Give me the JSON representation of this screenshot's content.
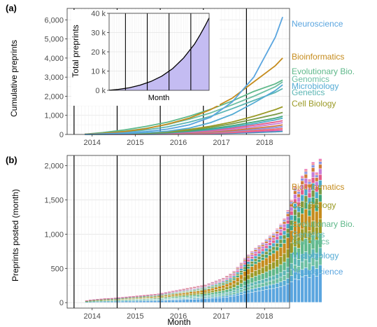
{
  "chart_data": [
    {
      "panel_label": "(a)",
      "type": "line",
      "ylabel": "Cumulative preprints",
      "ylim": [
        0,
        6600
      ],
      "yticks": [
        0,
        1000,
        2000,
        3000,
        4000,
        5000,
        6000
      ],
      "ytick_labels": [
        "0",
        "1,000",
        "2,000",
        "3,000",
        "4,000",
        "5,000",
        "6,000"
      ],
      "xlim": [
        2013.42,
        2018.58
      ],
      "xticks": [
        2014,
        2015,
        2016,
        2017,
        2018
      ],
      "xtick_labels": [
        "2014",
        "2015",
        "2016",
        "2017",
        "2018"
      ],
      "grid": true,
      "vlines": [
        2013.58,
        2014.58,
        2015.58,
        2016.58,
        2017.58
      ],
      "x": [
        2013.83,
        2014.25,
        2014.75,
        2015.25,
        2015.75,
        2016.25,
        2016.75,
        2017.25,
        2017.75,
        2018.25,
        2018.42
      ],
      "series": [
        {
          "name": "Neuroscience",
          "color": "#5aa5df",
          "labeled": true,
          "values": [
            5,
            30,
            80,
            150,
            280,
            500,
            900,
            1700,
            3000,
            5100,
            6150
          ]
        },
        {
          "name": "Bioinformatics",
          "color": "#c58b1c",
          "labeled": true,
          "values": [
            10,
            60,
            150,
            300,
            540,
            850,
            1300,
            1900,
            2750,
            3600,
            4000
          ]
        },
        {
          "name": "Evolutionary Bio.",
          "color": "#5fb88a",
          "labeled": true,
          "values": [
            15,
            100,
            240,
            420,
            640,
            950,
            1320,
            1750,
            2250,
            2650,
            2850
          ]
        },
        {
          "name": "Genomics",
          "color": "#6cbfa3",
          "labeled": true,
          "values": [
            10,
            70,
            170,
            320,
            520,
            800,
            1130,
            1550,
            2000,
            2500,
            2750
          ]
        },
        {
          "name": "Microbiology",
          "color": "#54abd4",
          "labeled": true,
          "values": [
            2,
            15,
            40,
            90,
            170,
            330,
            620,
            1050,
            1650,
            2300,
            2600
          ]
        },
        {
          "name": "Genetics",
          "color": "#5cb6b4",
          "labeled": true,
          "values": [
            8,
            50,
            120,
            240,
            400,
            640,
            950,
            1350,
            1780,
            2200,
            2400
          ]
        },
        {
          "name": "Cell Biology",
          "color": "#9b9a26",
          "labeled": true,
          "values": [
            3,
            15,
            40,
            80,
            150,
            260,
            430,
            650,
            950,
            1300,
            1450
          ]
        },
        {
          "name": "",
          "color": "#7a9a45",
          "labeled": false,
          "values": [
            2,
            12,
            30,
            65,
            120,
            220,
            370,
            560,
            800,
            1050,
            1150
          ]
        },
        {
          "name": "",
          "color": "#3fa67a",
          "labeled": false,
          "values": [
            2,
            10,
            26,
            55,
            100,
            180,
            300,
            460,
            650,
            850,
            950
          ]
        },
        {
          "name": "",
          "color": "#4aa9c8",
          "labeled": false,
          "values": [
            1,
            8,
            20,
            45,
            80,
            150,
            250,
            390,
            560,
            760,
            850
          ]
        },
        {
          "name": "",
          "color": "#e35c8a",
          "labeled": false,
          "values": [
            1,
            6,
            16,
            35,
            65,
            120,
            210,
            330,
            480,
            650,
            720
          ]
        },
        {
          "name": "",
          "color": "#c77dd6",
          "labeled": false,
          "values": [
            1,
            5,
            12,
            28,
            50,
            95,
            170,
            270,
            400,
            550,
            620
          ]
        },
        {
          "name": "",
          "color": "#d07a3a",
          "labeled": false,
          "values": [
            1,
            4,
            10,
            22,
            40,
            75,
            130,
            210,
            320,
            440,
            500
          ]
        },
        {
          "name": "",
          "color": "#8b93e0",
          "labeled": false,
          "values": [
            0,
            3,
            8,
            18,
            32,
            60,
            105,
            170,
            260,
            360,
            410
          ]
        },
        {
          "name": "",
          "color": "#ef6f6f",
          "labeled": false,
          "values": [
            0,
            2,
            6,
            14,
            25,
            45,
            80,
            130,
            200,
            280,
            320
          ]
        },
        {
          "name": "",
          "color": "#e85aa6",
          "labeled": false,
          "values": [
            0,
            2,
            5,
            10,
            18,
            32,
            58,
            95,
            150,
            210,
            240
          ]
        },
        {
          "name": "",
          "color": "#3e8fbf",
          "labeled": false,
          "values": [
            0,
            1,
            3,
            7,
            12,
            22,
            40,
            65,
            100,
            140,
            160
          ]
        }
      ]
    },
    {
      "panel_label": "",
      "type": "area",
      "ylabel": "Total preprints",
      "xlabel": "Month",
      "ylim": [
        0,
        40000
      ],
      "yticks": [
        0,
        10000,
        20000,
        30000,
        40000
      ],
      "ytick_labels": [
        "0 k",
        "10 k",
        "20 k",
        "30 k",
        "40 k"
      ],
      "xlim": [
        2013.83,
        2018.42
      ],
      "vlines": [
        2014.58,
        2015.58,
        2016.58,
        2017.58
      ],
      "fill_color": "#c4bcf2",
      "line_color": "#000000",
      "grid": true,
      "x": [
        2013.83,
        2014.25,
        2014.75,
        2015.25,
        2015.75,
        2016.25,
        2016.75,
        2017.25,
        2017.75,
        2018.0,
        2018.25,
        2018.42
      ],
      "values": [
        40,
        500,
        1300,
        2700,
        4600,
        7400,
        11300,
        16800,
        24000,
        28700,
        33800,
        37600
      ]
    },
    {
      "panel_label": "(b)",
      "type": "bar",
      "stacked": true,
      "ylabel": "Preprints posted (month)",
      "xlabel": "Month",
      "ylim": [
        -80,
        2150
      ],
      "yticks": [
        0,
        500,
        1000,
        1500,
        2000
      ],
      "ytick_labels": [
        "0",
        "500",
        "1,000",
        "1,500",
        "2,000"
      ],
      "xlim": [
        2013.42,
        2018.58
      ],
      "xticks": [
        2014,
        2015,
        2016,
        2017,
        2018
      ],
      "xtick_labels": [
        "2014",
        "2015",
        "2016",
        "2017",
        "2018"
      ],
      "grid": true,
      "vlines": [
        2013.58,
        2014.58,
        2015.58,
        2016.58,
        2017.58
      ],
      "start_month": "2013-11",
      "monthly_totals": [
        30,
        40,
        45,
        50,
        55,
        60,
        62,
        65,
        70,
        75,
        80,
        85,
        90,
        95,
        100,
        105,
        110,
        115,
        120,
        125,
        130,
        140,
        150,
        160,
        170,
        180,
        190,
        200,
        210,
        220,
        230,
        240,
        250,
        260,
        280,
        300,
        320,
        340,
        360,
        390,
        420,
        460,
        520,
        580,
        650,
        700,
        750,
        800,
        840,
        880,
        930,
        980,
        1020,
        1080,
        1150,
        1230,
        1350,
        1500,
        1700,
        1650,
        1850,
        1950,
        1800,
        2050,
        1900,
        2100
      ],
      "series": [
        {
          "name": "Neuroscience",
          "color": "#5aa5df",
          "share": 0.2
        },
        {
          "name": "Microbiology",
          "color": "#54abd4",
          "share": 0.06
        },
        {
          "name": "Genomics",
          "color": "#6cbfa3",
          "share": 0.06
        },
        {
          "name": "Genetics",
          "color": "#5cb6b4",
          "share": 0.06
        },
        {
          "name": "Evolutionary Bio.",
          "color": "#5fb88a",
          "share": 0.1
        },
        {
          "name": "Cell Biology",
          "color": "#9b9a26",
          "share": 0.1
        },
        {
          "name": "Bioinformatics",
          "color": "#c58b1c",
          "share": 0.12
        },
        {
          "name": "",
          "color": "#3fa67a",
          "share": 0.05
        },
        {
          "name": "",
          "color": "#7a9a45",
          "share": 0.05
        },
        {
          "name": "",
          "color": "#4aa9c8",
          "share": 0.05
        },
        {
          "name": "",
          "color": "#e35c8a",
          "share": 0.04
        },
        {
          "name": "",
          "color": "#c77dd6",
          "share": 0.04
        },
        {
          "name": "",
          "color": "#d07a3a",
          "share": 0.03
        },
        {
          "name": "",
          "color": "#8b93e0",
          "share": 0.02
        },
        {
          "name": "",
          "color": "#ef6f6f",
          "share": 0.01
        },
        {
          "name": "",
          "color": "#e85aa6",
          "share": 0.01
        }
      ]
    }
  ]
}
